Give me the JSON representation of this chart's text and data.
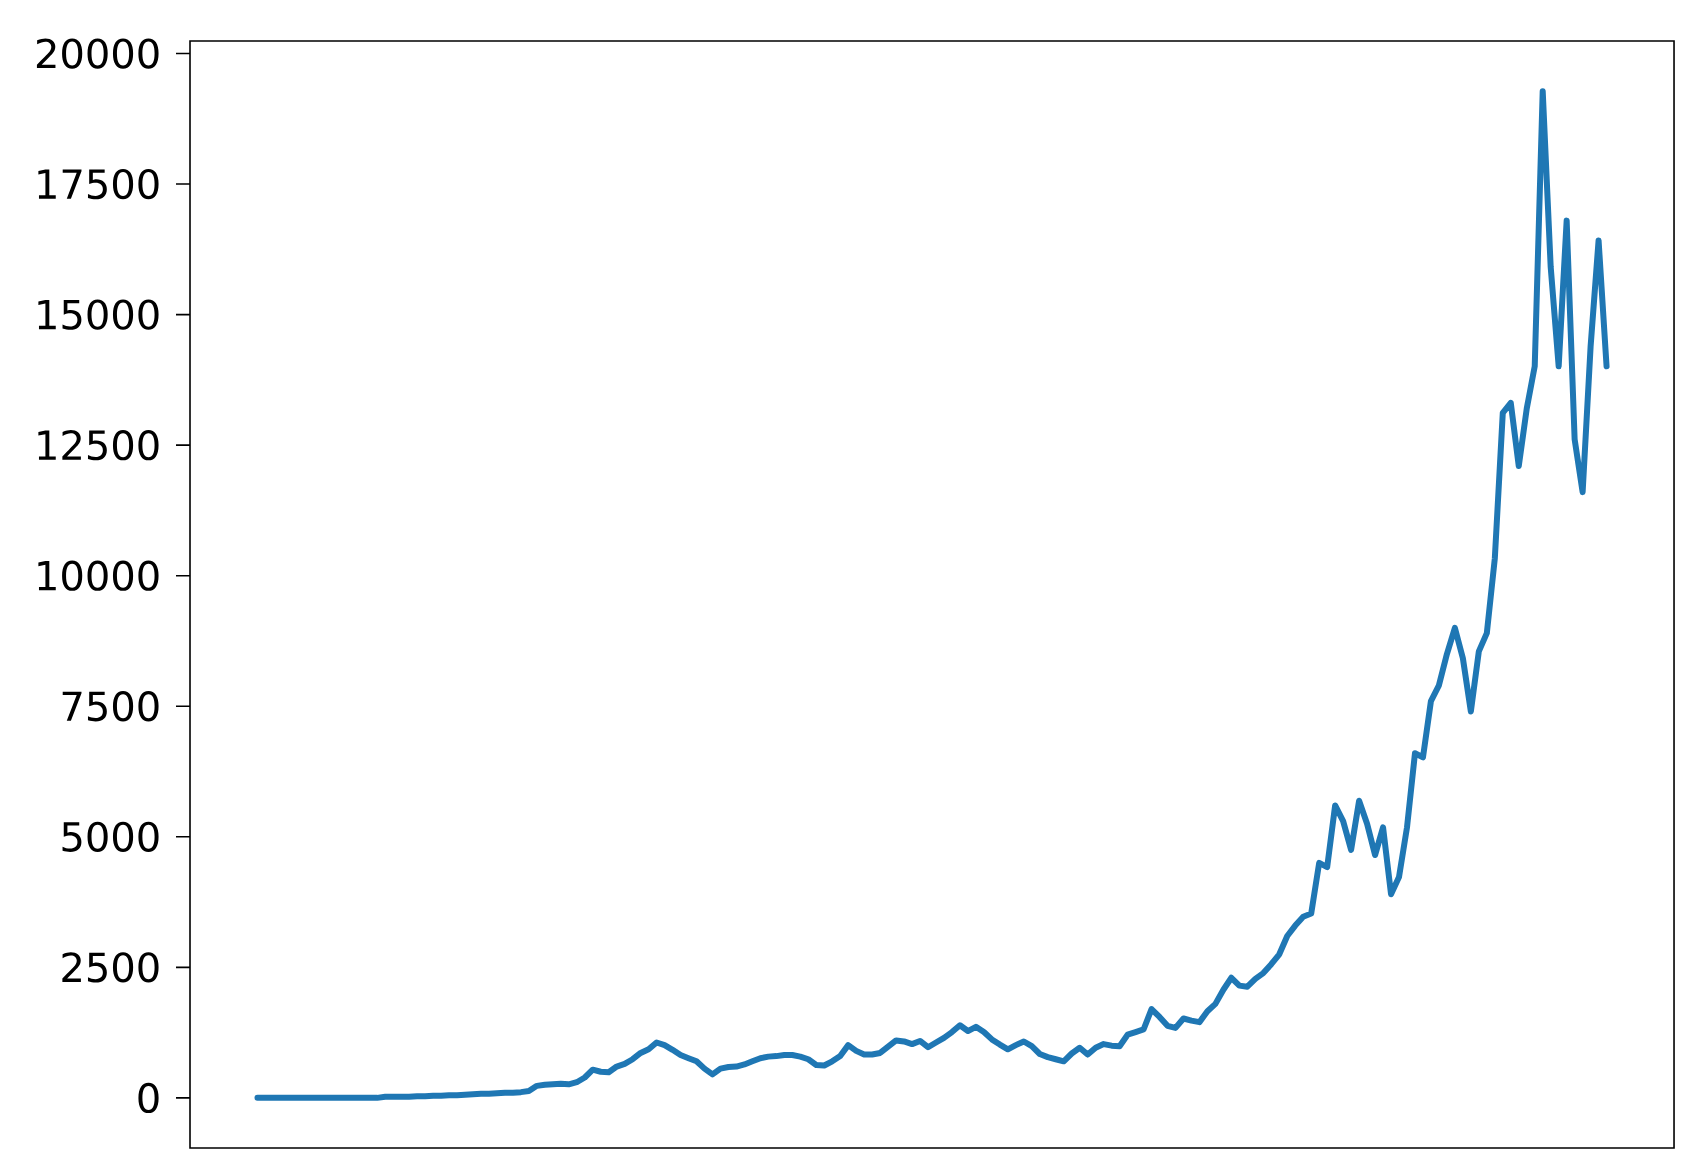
{
  "chart_data": {
    "type": "line",
    "color": "#1f77b4",
    "categories": [
      null,
      null,
      null,
      null,
      null,
      null,
      null,
      null,
      null,
      null,
      null,
      null,
      null,
      null,
      null,
      null,
      null,
      null,
      null,
      null,
      null,
      null,
      null,
      null,
      null,
      null,
      null,
      null,
      null,
      null,
      null,
      null,
      null,
      null,
      null,
      null,
      null,
      null,
      null,
      null,
      null,
      null,
      null,
      null,
      null,
      null,
      null,
      null,
      null,
      null,
      null,
      null,
      null,
      null,
      null,
      null,
      null,
      null,
      null,
      null,
      null,
      null,
      null,
      null,
      null,
      null,
      null,
      null,
      null,
      null,
      null,
      null,
      null,
      null,
      null,
      null,
      null,
      null,
      null,
      null,
      null,
      null,
      null,
      null,
      null,
      null,
      null,
      null,
      null,
      null,
      null,
      null,
      null,
      null,
      null,
      null,
      null,
      null,
      null,
      null,
      null,
      null,
      null,
      null,
      null,
      null,
      null,
      null,
      null,
      null,
      null,
      null,
      null,
      null,
      null,
      null,
      null,
      null,
      null,
      null,
      null,
      null,
      null,
      null,
      null,
      null,
      null,
      null,
      null,
      null,
      null,
      null,
      null,
      null,
      null,
      null,
      null,
      null,
      null,
      null,
      null,
      null,
      null,
      null,
      null,
      null,
      null,
      null,
      null,
      null,
      null,
      null,
      null,
      null,
      null,
      null,
      null,
      null,
      null,
      null,
      null,
      null,
      null,
      null,
      null,
      null,
      null,
      null,
      null,
      null
    ],
    "values": [
      0,
      0,
      0,
      0,
      0,
      0,
      0,
      0,
      0,
      0,
      0,
      0,
      0,
      0,
      0,
      0,
      20,
      20,
      20,
      20,
      30,
      30,
      40,
      40,
      50,
      50,
      60,
      70,
      80,
      80,
      90,
      100,
      100,
      110,
      130,
      230,
      250,
      260,
      270,
      260,
      300,
      390,
      540,
      500,
      490,
      600,
      650,
      740,
      860,
      930,
      1060,
      1010,
      920,
      820,
      760,
      700,
      560,
      450,
      560,
      590,
      600,
      640,
      700,
      760,
      790,
      800,
      820,
      820,
      790,
      740,
      630,
      620,
      700,
      800,
      1010,
      900,
      830,
      830,
      860,
      980,
      1100,
      1080,
      1030,
      1090,
      970,
      1060,
      1150,
      1260,
      1390,
      1280,
      1360,
      1260,
      1120,
      1020,
      930,
      1010,
      1080,
      990,
      840,
      780,
      740,
      700,
      850,
      960,
      830,
      960,
      1030,
      1000,
      990,
      1210,
      1260,
      1310,
      1700,
      1550,
      1380,
      1340,
      1520,
      1480,
      1450,
      1660,
      1800,
      2070,
      2300,
      2150,
      2130,
      2280,
      2390,
      2560,
      2750,
      3100,
      3300,
      3470,
      3530,
      4500,
      4420,
      5600,
      5300,
      4750,
      5690,
      5250,
      4650,
      5180,
      3900,
      4230,
      5180,
      6600,
      6520,
      7600,
      7900,
      8500,
      9000,
      8420,
      7400,
      8550,
      8900,
      10330,
      13120,
      13310,
      12100,
      13200,
      14010,
      19280,
      15910,
      14010,
      16800,
      12610,
      11600,
      14390,
      16420,
      14010
    ],
    "ylim": [
      -960,
      20240
    ],
    "yticks": [
      0,
      2500,
      5000,
      7500,
      10000,
      12500,
      15000,
      17500,
      20000
    ]
  }
}
